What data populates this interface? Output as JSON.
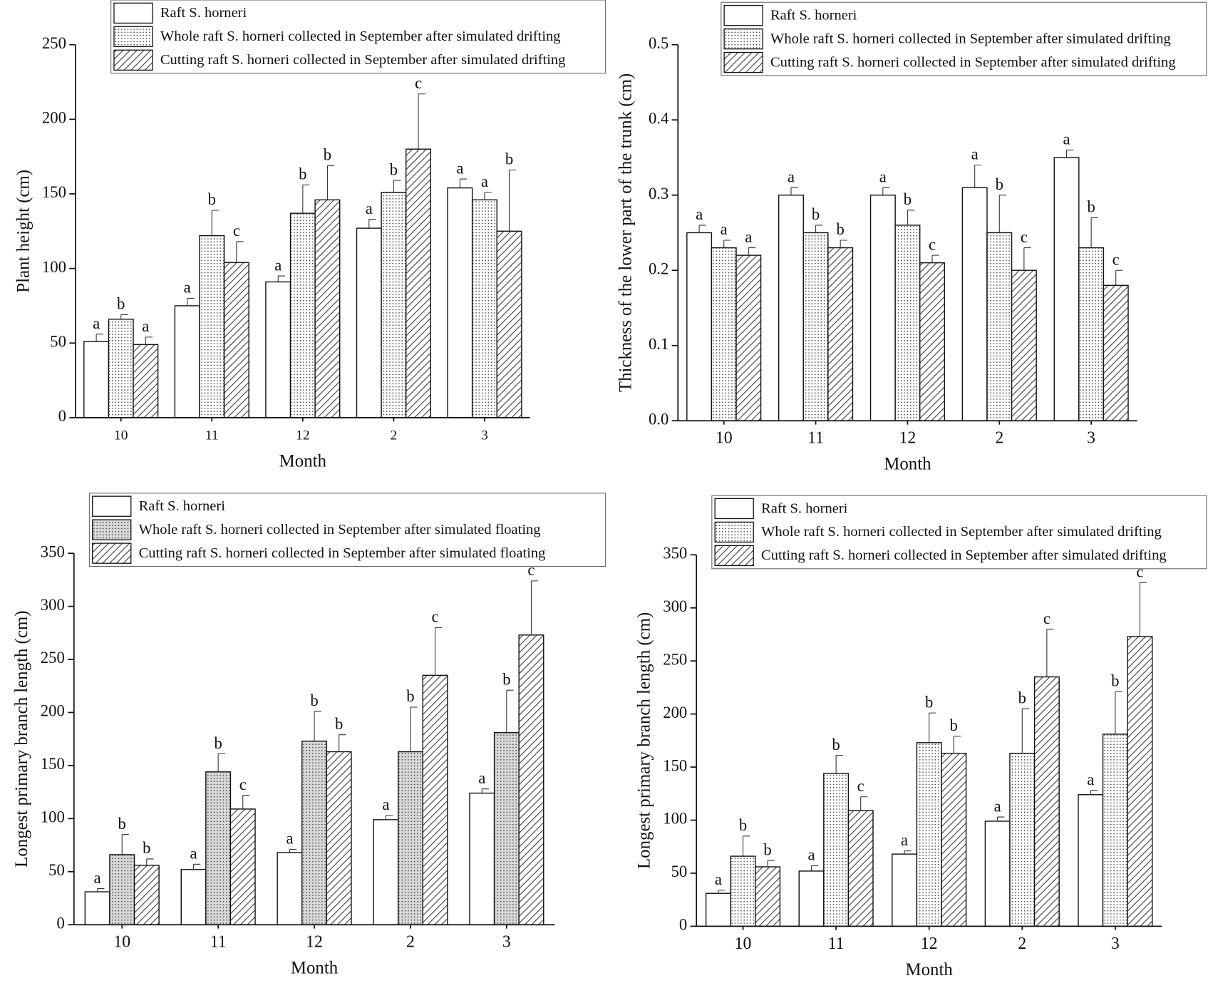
{
  "chart_data": [
    {
      "type": "bar",
      "y_label": "Plant height (cm)",
      "x_label": "Month",
      "categories": [
        "10",
        "11",
        "12",
        "2",
        "3"
      ],
      "ylim": [
        0,
        250
      ],
      "yticks": [
        0,
        50,
        100,
        150,
        200,
        250
      ],
      "series": [
        {
          "name": "Raft S. horneri",
          "color": "#ffffff",
          "pattern": "none",
          "values": [
            51,
            75,
            91,
            127,
            154
          ],
          "errors": [
            5,
            5,
            4,
            6,
            6
          ],
          "letters": [
            "a",
            "a",
            "a",
            "a",
            "a"
          ]
        },
        {
          "name": "Whole raft S. horneri collected in September after simulated drifting",
          "color": "#ffffff",
          "pattern": "dots",
          "values": [
            66,
            122,
            137,
            151,
            146
          ],
          "errors": [
            3,
            17,
            19,
            8,
            5
          ],
          "letters": [
            "b",
            "b",
            "b",
            "b",
            "a"
          ]
        },
        {
          "name": "Cutting raft S. horneri collected in September after simulated drifting",
          "color": "#ffffff",
          "pattern": "hatch",
          "values": [
            49,
            104,
            146,
            180,
            125
          ],
          "errors": [
            5,
            14,
            23,
            37,
            41
          ],
          "letters": [
            "a",
            "c",
            "b",
            "c",
            "b"
          ]
        }
      ]
    },
    {
      "type": "bar",
      "y_label": "Thickness of the lower part of the trunk (cm)",
      "x_label": "Month",
      "categories": [
        "10",
        "11",
        "12",
        "2",
        "3"
      ],
      "ylim": [
        0,
        0.5
      ],
      "yticks": [
        {
          "value": 0,
          "label": "0.0"
        },
        0.1,
        0.2,
        0.3,
        0.4,
        0.5
      ],
      "series": [
        {
          "name": "Raft S. horneri",
          "color": "#ffffff",
          "pattern": "none",
          "values": [
            0.25,
            0.3,
            0.3,
            0.31,
            0.35
          ],
          "errors": [
            0.01,
            0.01,
            0.01,
            0.03,
            0.01
          ],
          "letters": [
            "a",
            "a",
            "a",
            "a",
            "a"
          ]
        },
        {
          "name": "Whole raft S. horneri collected in September after simulated drifting",
          "color": "#ffffff",
          "pattern": "dots",
          "values": [
            0.23,
            0.25,
            0.26,
            0.25,
            0.23
          ],
          "errors": [
            0.01,
            0.01,
            0.02,
            0.05,
            0.04
          ],
          "letters": [
            "a",
            "b",
            "b",
            "b",
            "b"
          ]
        },
        {
          "name": "Cutting raft S. horneri collected in September after simulated drifting",
          "color": "#ffffff",
          "pattern": "hatch",
          "values": [
            0.22,
            0.23,
            0.21,
            0.2,
            0.18
          ],
          "errors": [
            0.01,
            0.01,
            0.01,
            0.03,
            0.02
          ],
          "letters": [
            "a",
            "b",
            "c",
            "c",
            "c"
          ]
        }
      ]
    },
    {
      "type": "bar",
      "y_label": "Longest primary branch length (cm)",
      "x_label": "Month",
      "categories": [
        "10",
        "11",
        "12",
        "2",
        "3"
      ],
      "ylim": [
        0,
        350
      ],
      "yticks": [
        0,
        50,
        100,
        150,
        200,
        250,
        300,
        350
      ],
      "series": [
        {
          "name": "Raft S. horneri",
          "color": "#ffffff",
          "pattern": "none",
          "values": [
            31,
            52,
            68,
            99,
            124
          ],
          "errors": [
            3,
            5,
            3,
            4,
            4
          ],
          "letters": [
            "a",
            "a",
            "a",
            "a",
            "a"
          ]
        },
        {
          "name": "Whole raft S. horneri collected in September after simulated floating",
          "color": "#d9d9d9",
          "pattern": "dots",
          "values": [
            66,
            144,
            173,
            163,
            181
          ],
          "errors": [
            19,
            17,
            28,
            42,
            40
          ],
          "letters": [
            "b",
            "b",
            "b",
            "b",
            "b"
          ]
        },
        {
          "name": "Cutting raft S. horneri collected in September after simulated floating",
          "color": "#ffffff",
          "pattern": "hatch",
          "values": [
            56,
            109,
            163,
            235,
            273
          ],
          "errors": [
            6,
            13,
            16,
            45,
            51
          ],
          "letters": [
            "b",
            "c",
            "b",
            "c",
            "c"
          ]
        }
      ]
    },
    {
      "type": "bar",
      "y_label": "Longest primary branch length (cm)",
      "x_label": "Month",
      "categories": [
        "10",
        "11",
        "12",
        "2",
        "3"
      ],
      "ylim": [
        0,
        350
      ],
      "yticks": [
        0,
        50,
        100,
        150,
        200,
        250,
        300,
        350
      ],
      "series": [
        {
          "name": "Raft S. horneri",
          "color": "#ffffff",
          "pattern": "none",
          "values": [
            31,
            52,
            68,
            99,
            124
          ],
          "errors": [
            3,
            5,
            3,
            4,
            4
          ],
          "letters": [
            "a",
            "a",
            "a",
            "a",
            "a"
          ]
        },
        {
          "name": "Whole raft S. horneri collected in September after simulated drifting",
          "color": "#ffffff",
          "pattern": "dots",
          "values": [
            66,
            144,
            173,
            163,
            181
          ],
          "errors": [
            19,
            17,
            28,
            42,
            40
          ],
          "letters": [
            "b",
            "b",
            "b",
            "b",
            "b"
          ]
        },
        {
          "name": "Cutting raft S. horneri collected in September after simulated drifting",
          "color": "#ffffff",
          "pattern": "hatch",
          "values": [
            56,
            109,
            163,
            235,
            273
          ],
          "errors": [
            6,
            13,
            16,
            45,
            51
          ],
          "letters": [
            "b",
            "c",
            "b",
            "c",
            "c"
          ]
        }
      ]
    }
  ]
}
